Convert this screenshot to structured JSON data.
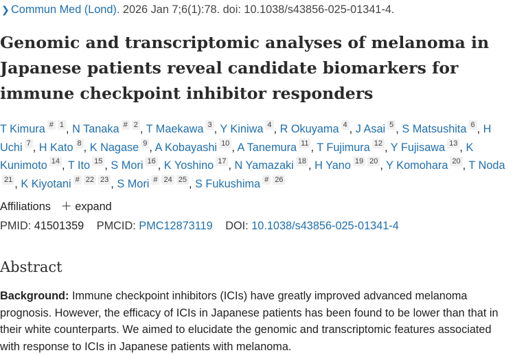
{
  "citation": {
    "journal": "Commun Med (Lond).",
    "details": " 2026 Jan 7;6(1):78. doi: 10.1038/s43856-025-01341-4."
  },
  "title": "Genomic and transcriptomic analyses of melanoma in Japanese patients reveal candidate biomarkers for immune checkpoint inhibitor responders",
  "authors": [
    {
      "name": "T Kimura",
      "marks": [
        "#",
        "1"
      ]
    },
    {
      "name": "N Tanaka",
      "marks": [
        "#",
        "2"
      ]
    },
    {
      "name": "T Maekawa",
      "marks": [
        "3"
      ]
    },
    {
      "name": "Y Kiniwa",
      "marks": [
        "4"
      ]
    },
    {
      "name": "R Okuyama",
      "marks": [
        "4"
      ]
    },
    {
      "name": "J Asai",
      "marks": [
        "5"
      ]
    },
    {
      "name": "S Matsushita",
      "marks": [
        "6"
      ]
    },
    {
      "name": "H Uchi",
      "marks": [
        "7"
      ]
    },
    {
      "name": "H Kato",
      "marks": [
        "8"
      ]
    },
    {
      "name": "K Nagase",
      "marks": [
        "9"
      ]
    },
    {
      "name": "A Kobayashi",
      "marks": [
        "10"
      ]
    },
    {
      "name": "A Tanemura",
      "marks": [
        "11"
      ]
    },
    {
      "name": "T Fujimura",
      "marks": [
        "12"
      ]
    },
    {
      "name": "Y Fujisawa",
      "marks": [
        "13"
      ]
    },
    {
      "name": "K Kunimoto",
      "marks": [
        "14"
      ]
    },
    {
      "name": "T Ito",
      "marks": [
        "15"
      ]
    },
    {
      "name": "S Mori",
      "marks": [
        "16"
      ]
    },
    {
      "name": "K Yoshino",
      "marks": [
        "17"
      ]
    },
    {
      "name": "N Yamazaki",
      "marks": [
        "18"
      ]
    },
    {
      "name": "H Yano",
      "marks": [
        "19",
        "20"
      ]
    },
    {
      "name": "Y Komohara",
      "marks": [
        "20"
      ]
    },
    {
      "name": "T Noda",
      "marks": [
        "21"
      ]
    },
    {
      "name": "K Kiyotani",
      "marks": [
        "#",
        "22",
        "23"
      ]
    },
    {
      "name": "S Mori",
      "marks": [
        "#",
        "24",
        "25"
      ]
    },
    {
      "name": "S Fukushima",
      "marks": [
        "#",
        "26"
      ]
    }
  ],
  "affiliations": {
    "label": "Affiliations",
    "expand_icon": "plus-icon",
    "expand": "expand"
  },
  "ids": {
    "pmid_label": "PMID:",
    "pmid": "41501359",
    "pmcid_label": "PMCID:",
    "pmcid": "PMC12873119",
    "doi_label": "DOI:",
    "doi": "10.1038/s43856-025-01341-4"
  },
  "abstract": {
    "heading": "Abstract",
    "background_label": "Background:",
    "background_text": " Immune checkpoint inhibitors (ICIs) have greatly improved advanced melanoma prognosis. However, the efficacy of ICIs in Japanese patients has been found to be lower than that in their white counterparts. We aimed to elucidate the genomic and transcriptomic features associated with response to ICIs in Japanese patients with melanoma."
  },
  "colors": {
    "link": "#1f6fae",
    "text": "#212121"
  }
}
